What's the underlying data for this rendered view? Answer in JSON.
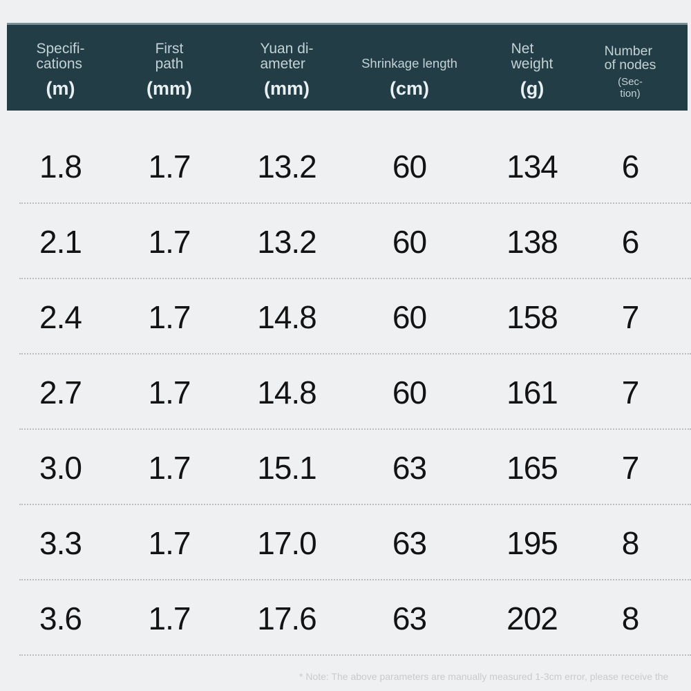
{
  "chart_data": {
    "type": "table",
    "columns": [
      {
        "label": "Specifi-\ncations",
        "unit": "(m)"
      },
      {
        "label": "First\npath",
        "unit": "(mm)"
      },
      {
        "label": "Yuan di-\nameter",
        "unit": "(mm)"
      },
      {
        "label": "Shrinkage length",
        "unit": "(cm)"
      },
      {
        "label": "Net\nweight",
        "unit": "(g)"
      },
      {
        "label": "Number\nof nodes",
        "unit": "(Sec-\ntion)"
      }
    ],
    "rows": [
      [
        "1.8",
        "1.7",
        "13.2",
        "60",
        "134",
        "6"
      ],
      [
        "2.1",
        "1.7",
        "13.2",
        "60",
        "138",
        "6"
      ],
      [
        "2.4",
        "1.7",
        "14.8",
        "60",
        "158",
        "7"
      ],
      [
        "2.7",
        "1.7",
        "14.8",
        "60",
        "161",
        "7"
      ],
      [
        "3.0",
        "1.7",
        "15.1",
        "63",
        "165",
        "7"
      ],
      [
        "3.3",
        "1.7",
        "17.0",
        "63",
        "195",
        "8"
      ],
      [
        "3.6",
        "1.7",
        "17.6",
        "63",
        "202",
        "8"
      ]
    ]
  },
  "footer": {
    "note": "* Note: The above parameters are manually measured 1-3cm error, please receive the"
  },
  "colors": {
    "page_bg": "#eff0f2",
    "header_bg": "#223d46",
    "header_top_edge": "#7a8f96",
    "header_label": "#c4d2d6",
    "header_unit": "#e9f0f3",
    "data_text": "#131313",
    "divider": "#bcbcbc",
    "note_text": "#c9cacc"
  }
}
